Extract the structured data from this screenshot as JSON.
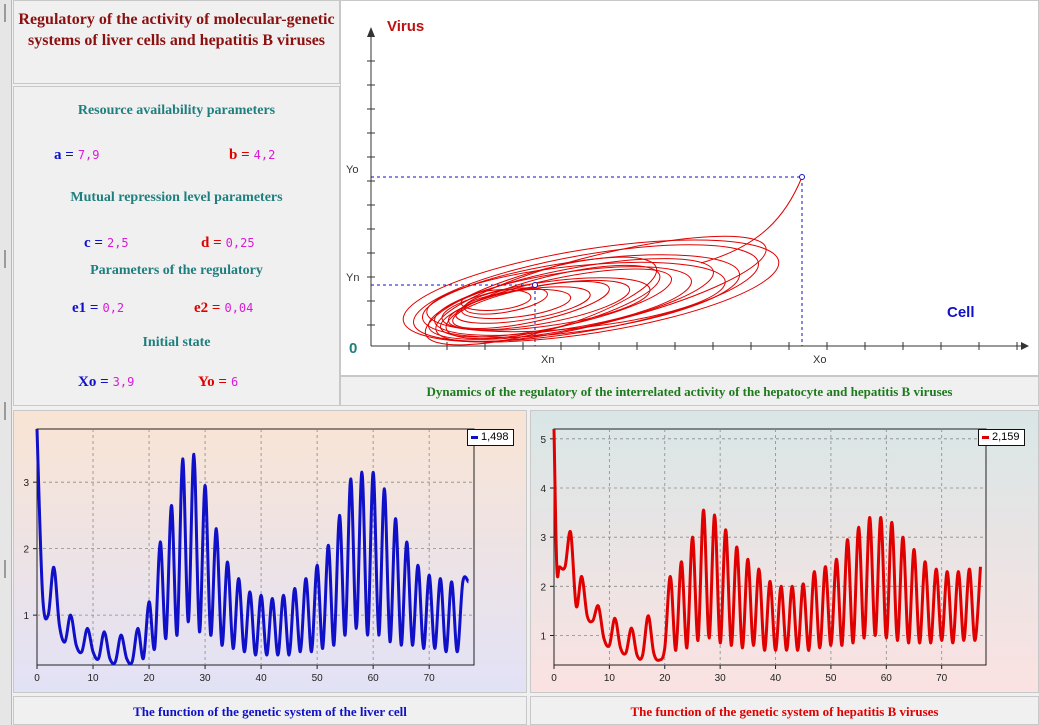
{
  "title": "Regulatory of the activity of molecular-genetic systems of liver cells and hepatitis B viruses",
  "resource_section": "Resource availability parameters",
  "repression_section": "Mutual repression level parameters",
  "regulatory_section": "Parameters of the regulatory",
  "initial_section": "Initial state",
  "params": {
    "a": {
      "label": "a =",
      "value": "7,9"
    },
    "b": {
      "label": "b =",
      "value": "4,2"
    },
    "c": {
      "label": "c =",
      "value": "2,5"
    },
    "d": {
      "label": "d =",
      "value": "0,25"
    },
    "e1": {
      "label": "e1 =",
      "value": "0,2"
    },
    "e2": {
      "label": "e2 =",
      "value": "0,04"
    },
    "xo": {
      "label": "Xo =",
      "value": "3,9"
    },
    "yo": {
      "label": "Yo =",
      "value": "6"
    }
  },
  "phase": {
    "y_axis_label": "Virus",
    "x_axis_label": "Cell",
    "origin_label": "0",
    "yo_mark": "Yo",
    "yn_mark": "Yn",
    "xn_mark": "Xn",
    "xo_mark": "Xo",
    "caption": "Dynamics of the regulatory of the interrelated activity of the hepatocyte and hepatitis B viruses",
    "colors": {
      "curve": "#e00000",
      "axis_labels": "#1010c8",
      "guides": "#1010c8"
    }
  },
  "left_chart": {
    "legend_value": "1,498",
    "caption": "The function of the genetic system of the liver cell",
    "color": "#1010c8"
  },
  "right_chart": {
    "legend_value": "2,159",
    "caption": "The function of the genetic system of hepatitis B viruses",
    "color": "#e00000"
  },
  "chart_data": [
    {
      "type": "line",
      "xlim": [
        0,
        78
      ],
      "ylim": [
        0.25,
        3.8
      ],
      "x_ticks": [
        0,
        10,
        20,
        30,
        40,
        50,
        60,
        70
      ],
      "y_ticks": [
        1,
        2,
        3
      ],
      "series": [
        {
          "color": "#1010c8",
          "x": [
            0,
            1,
            2,
            3,
            4,
            5,
            6,
            7,
            8,
            9,
            10,
            11,
            12,
            13,
            14,
            15,
            16,
            17,
            18,
            19,
            20,
            21,
            22,
            23,
            24,
            25,
            26,
            27,
            28,
            29,
            30,
            31,
            32,
            33,
            34,
            35,
            36,
            37,
            38,
            39,
            40,
            41,
            42,
            43,
            44,
            45,
            46,
            47,
            48,
            49,
            50,
            51,
            52,
            53,
            54,
            55,
            56,
            57,
            58,
            59,
            60,
            61,
            62,
            63,
            64,
            65,
            66,
            67,
            68,
            69,
            70,
            71,
            72,
            73,
            74,
            75,
            76,
            77
          ],
          "y": [
            3.8,
            1.3,
            1.0,
            1.72,
            0.85,
            0.6,
            1.0,
            0.55,
            0.45,
            0.8,
            0.45,
            0.35,
            0.75,
            0.35,
            0.3,
            0.7,
            0.35,
            0.3,
            0.8,
            0.35,
            1.2,
            0.5,
            2.1,
            0.65,
            2.65,
            0.7,
            3.35,
            0.9,
            3.42,
            0.75,
            2.95,
            0.7,
            2.3,
            0.55,
            1.8,
            0.5,
            1.55,
            0.45,
            1.35,
            0.4,
            1.3,
            0.4,
            1.25,
            0.4,
            1.3,
            0.4,
            1.4,
            0.45,
            1.55,
            0.45,
            1.75,
            0.5,
            2.05,
            0.55,
            2.5,
            0.7,
            3.05,
            0.8,
            3.15,
            0.7,
            3.15,
            0.7,
            2.9,
            0.6,
            2.45,
            0.55,
            2.1,
            0.55,
            1.75,
            0.5,
            1.6,
            0.5,
            1.55,
            0.45,
            1.5,
            0.45,
            1.5,
            1.5
          ]
        }
      ]
    },
    {
      "type": "line",
      "xlim": [
        0,
        78
      ],
      "ylim": [
        0.4,
        5.2
      ],
      "x_ticks": [
        0,
        10,
        20,
        30,
        40,
        50,
        60,
        70
      ],
      "y_ticks": [
        1,
        2,
        3,
        4,
        5
      ],
      "series": [
        {
          "color": "#e00000",
          "x": [
            0,
            0.5,
            1,
            2,
            3,
            4,
            5,
            6,
            7,
            8,
            9,
            10,
            11,
            12,
            13,
            14,
            15,
            16,
            17,
            18,
            19,
            20,
            21,
            22,
            23,
            24,
            25,
            26,
            27,
            28,
            29,
            30,
            31,
            32,
            33,
            34,
            35,
            36,
            37,
            38,
            39,
            40,
            41,
            42,
            43,
            44,
            45,
            46,
            47,
            48,
            49,
            50,
            51,
            52,
            53,
            54,
            55,
            56,
            57,
            58,
            59,
            60,
            61,
            62,
            63,
            64,
            65,
            66,
            67,
            68,
            69,
            70,
            71,
            72,
            73,
            74,
            75,
            76,
            77
          ],
          "y": [
            5.2,
            2.4,
            2.4,
            2.4,
            3.1,
            1.6,
            2.2,
            1.4,
            1.3,
            1.6,
            0.95,
            0.8,
            1.35,
            0.75,
            0.65,
            1.15,
            0.6,
            0.6,
            1.4,
            0.65,
            0.5,
            0.75,
            2.2,
            0.7,
            2.5,
            0.75,
            3.0,
            0.9,
            3.55,
            0.95,
            3.45,
            0.85,
            3.15,
            0.8,
            2.8,
            0.75,
            2.55,
            0.8,
            2.35,
            0.7,
            2.1,
            0.7,
            2.0,
            0.7,
            2.0,
            0.7,
            2.05,
            0.7,
            2.3,
            0.75,
            2.4,
            0.8,
            2.55,
            0.8,
            2.95,
            0.85,
            3.2,
            0.95,
            3.4,
            1.0,
            3.4,
            0.95,
            3.3,
            0.9,
            3.0,
            0.85,
            2.75,
            0.85,
            2.5,
            0.85,
            2.35,
            0.9,
            2.3,
            0.85,
            2.3,
            0.9,
            2.35,
            0.9,
            2.4
          ]
        }
      ]
    }
  ]
}
